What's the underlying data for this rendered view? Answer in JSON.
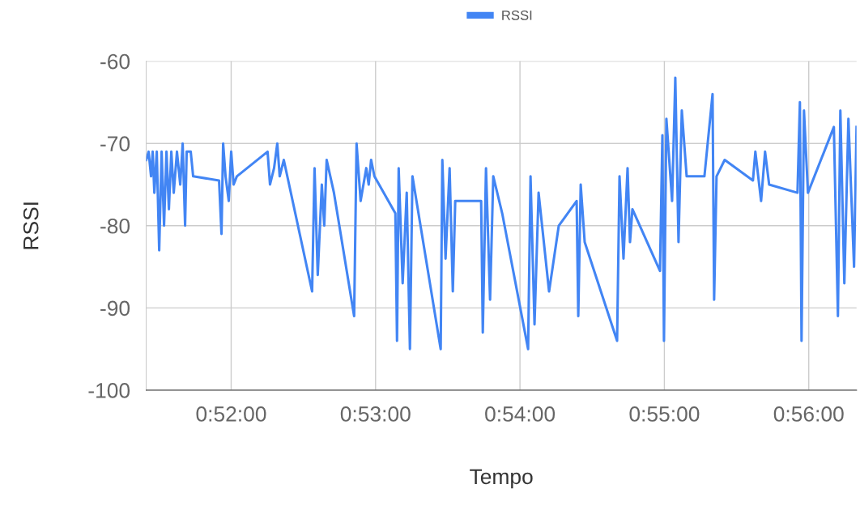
{
  "chart_data": {
    "type": "line",
    "xlabel": "Tempo",
    "ylabel": "RSSI",
    "legend": "top",
    "grid": true,
    "marker": "none",
    "line_style": "solid",
    "xlim": [
      0.85686,
      0.93885
    ],
    "ylim": [
      -100,
      -60
    ],
    "yticks": [
      -100,
      -90,
      -80,
      -70,
      -60
    ],
    "xticks": [
      {
        "value": 0.866667,
        "label": "0:52:00"
      },
      {
        "value": 0.883333,
        "label": "0:53:00"
      },
      {
        "value": 0.9,
        "label": "0:54:00"
      },
      {
        "value": 0.916667,
        "label": "0:55:00"
      },
      {
        "value": 0.933333,
        "label": "0:56:00"
      }
    ],
    "x": [
      0.85686,
      0.85714,
      0.85742,
      0.85761,
      0.8578,
      0.85808,
      0.85836,
      0.85864,
      0.85892,
      0.8592,
      0.85948,
      0.85976,
      0.86004,
      0.86041,
      0.86079,
      0.86107,
      0.86135,
      0.86153,
      0.862,
      0.86228,
      0.86527,
      0.86555,
      0.86574,
      0.86602,
      0.86639,
      0.86667,
      0.86695,
      0.86732,
      0.87087,
      0.87115,
      0.87162,
      0.87199,
      0.87227,
      0.87274,
      0.87601,
      0.87629,
      0.87666,
      0.87713,
      0.87741,
      0.87769,
      0.87853,
      0.88086,
      0.88114,
      0.88161,
      0.88226,
      0.88254,
      0.88282,
      0.8832,
      0.88562,
      0.88581,
      0.886,
      0.88646,
      0.88693,
      0.8873,
      0.88759,
      0.89085,
      0.89104,
      0.89141,
      0.89188,
      0.89225,
      0.89253,
      0.89552,
      0.89571,
      0.89608,
      0.89655,
      0.89692,
      0.89795,
      0.90094,
      0.90122,
      0.90168,
      0.90215,
      0.90336,
      0.90448,
      0.90654,
      0.90673,
      0.90701,
      0.90747,
      0.91121,
      0.91149,
      0.91195,
      0.91242,
      0.9127,
      0.91298,
      0.91616,
      0.91644,
      0.91662,
      0.9169,
      0.91756,
      0.91793,
      0.9183,
      0.91868,
      0.91924,
      0.92129,
      0.92223,
      0.92241,
      0.92269,
      0.92363,
      0.92689,
      0.92717,
      0.92783,
      0.92829,
      0.92876,
      0.93203,
      0.93231,
      0.9325,
      0.93278,
      0.93324,
      0.93623,
      0.9367,
      0.93698,
      0.93744,
      0.93791,
      0.93856,
      0.93885
    ],
    "series": [
      {
        "name": "RSSI",
        "color": "#4285f4",
        "values": [
          -72,
          -71,
          -74,
          -71,
          -76,
          -71,
          -83,
          -71,
          -80,
          -71,
          -78,
          -71,
          -76,
          -71,
          -75,
          -70,
          -80,
          -71,
          -71,
          -74,
          -74.5,
          -81,
          -70,
          -74,
          -77,
          -71,
          -75,
          -74,
          -71,
          -75,
          -73,
          -70,
          -74,
          -72,
          -88,
          -73,
          -86,
          -75,
          -80,
          -72,
          -76,
          -91,
          -70,
          -77,
          -73,
          -75,
          -72,
          -74,
          -78.5,
          -94,
          -73,
          -87,
          -76,
          -95,
          -74,
          -95,
          -72,
          -84,
          -73,
          -88,
          -77,
          -77,
          -93,
          -73,
          -89,
          -74,
          -78.5,
          -95,
          -74,
          -92,
          -76,
          -88,
          -80,
          -77,
          -91,
          -75,
          -82,
          -94,
          -74,
          -84,
          -73,
          -82,
          -78,
          -85.5,
          -69,
          -94,
          -67,
          -77,
          -62,
          -82,
          -66,
          -74,
          -74,
          -64,
          -89,
          -74,
          -72,
          -74.5,
          -71,
          -77,
          -71,
          -75,
          -76,
          -65,
          -94,
          -66,
          -76,
          -68,
          -91,
          -66,
          -87,
          -67,
          -85,
          -68
        ]
      }
    ]
  }
}
